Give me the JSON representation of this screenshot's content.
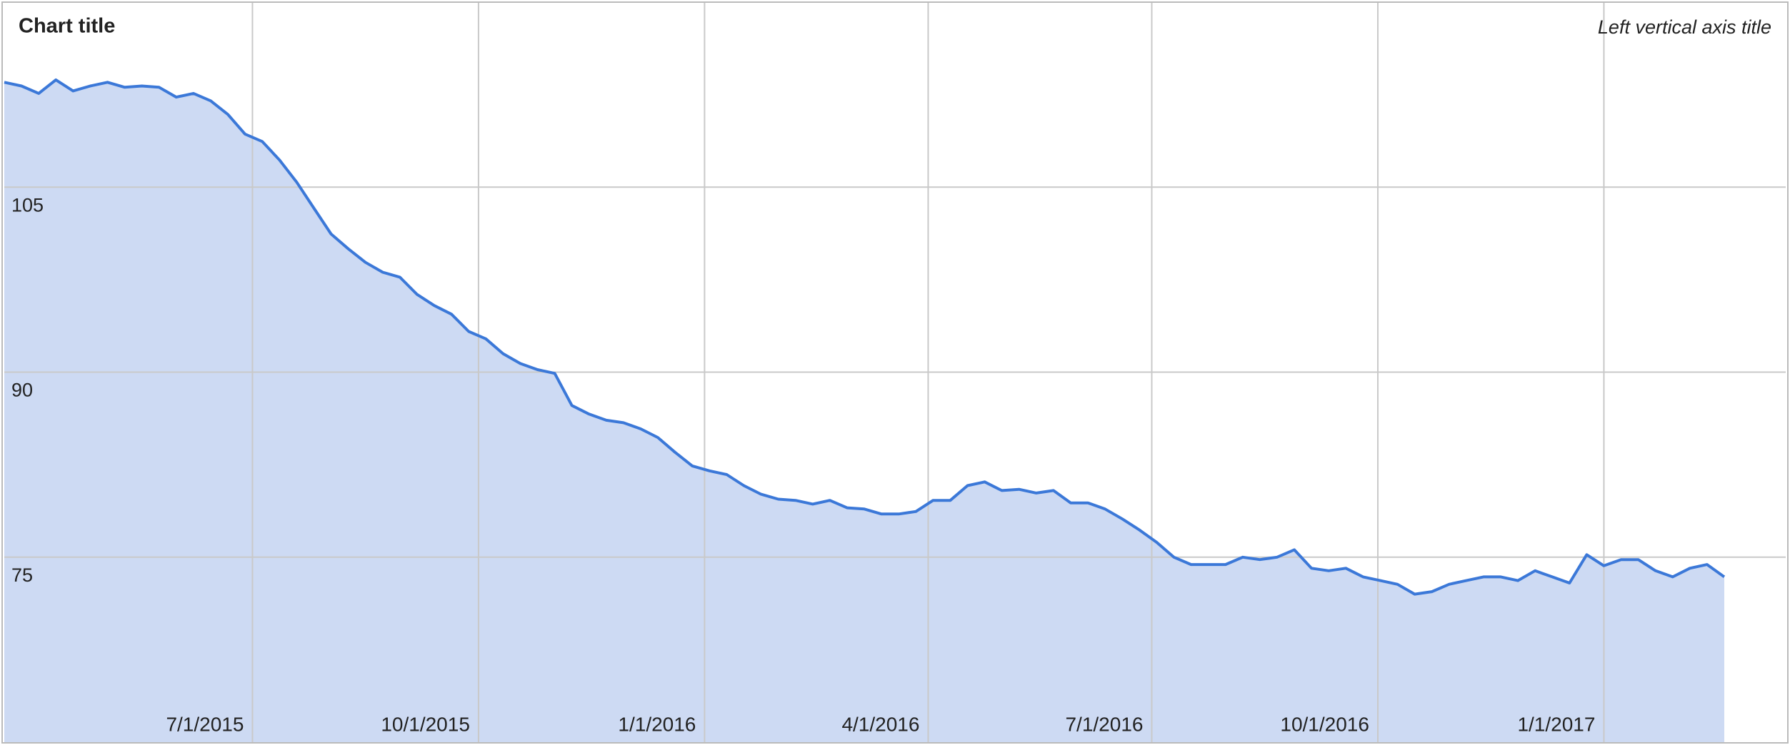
{
  "chart_data": {
    "type": "area",
    "title": "Chart title",
    "y_axis_title": "Left vertical axis title",
    "color": "#3b78d8",
    "fill_color": "#cddaf3",
    "grid": true,
    "x": [
      "3/22/2015",
      "3/29/2015",
      "4/5/2015",
      "4/12/2015",
      "4/19/2015",
      "4/26/2015",
      "5/3/2015",
      "5/10/2015",
      "5/17/2015",
      "5/24/2015",
      "5/31/2015",
      "6/7/2015",
      "6/14/2015",
      "6/21/2015",
      "6/28/2015",
      "7/5/2015",
      "7/12/2015",
      "7/19/2015",
      "7/26/2015",
      "8/2/2015",
      "8/9/2015",
      "8/16/2015",
      "8/23/2015",
      "8/30/2015",
      "9/6/2015",
      "9/13/2015",
      "9/20/2015",
      "9/27/2015",
      "10/4/2015",
      "10/11/2015",
      "10/18/2015",
      "10/25/2015",
      "11/1/2015",
      "11/8/2015",
      "11/15/2015",
      "11/22/2015",
      "11/29/2015",
      "12/6/2015",
      "12/13/2015",
      "12/20/2015",
      "12/27/2015",
      "1/3/2016",
      "1/10/2016",
      "1/17/2016",
      "1/24/2016",
      "1/31/2016",
      "2/7/2016",
      "2/14/2016",
      "2/21/2016",
      "2/28/2016",
      "3/6/2016",
      "3/13/2016",
      "3/20/2016",
      "3/27/2016",
      "4/3/2016",
      "4/10/2016",
      "4/17/2016",
      "4/24/2016",
      "5/1/2016",
      "5/8/2016",
      "5/15/2016",
      "5/22/2016",
      "5/29/2016",
      "6/5/2016",
      "6/12/2016",
      "6/19/2016",
      "6/26/2016",
      "7/3/2016",
      "7/10/2016",
      "7/17/2016",
      "7/24/2016",
      "7/31/2016",
      "8/7/2016",
      "8/14/2016",
      "8/21/2016",
      "8/28/2016",
      "9/4/2016",
      "9/11/2016",
      "9/18/2016",
      "9/25/2016",
      "10/2/2016",
      "10/9/2016",
      "10/16/2016",
      "10/23/2016",
      "10/30/2016",
      "11/6/2016",
      "11/13/2016",
      "11/20/2016",
      "11/27/2016",
      "12/4/2016",
      "12/11/2016",
      "12/18/2016",
      "12/25/2016",
      "1/1/2017",
      "1/8/2017",
      "1/15/2017",
      "1/22/2017",
      "1/29/2017",
      "2/5/2017",
      "2/12/2017",
      "2/19/2017"
    ],
    "values": [
      113.5,
      113.2,
      112.6,
      113.7,
      112.8,
      113.2,
      113.5,
      113.1,
      113.2,
      113.1,
      112.3,
      112.6,
      112.0,
      110.9,
      109.3,
      108.7,
      107.2,
      105.4,
      103.3,
      101.2,
      100.0,
      98.9,
      98.1,
      97.7,
      96.3,
      95.4,
      94.7,
      93.3,
      92.7,
      91.5,
      90.7,
      90.2,
      89.9,
      87.3,
      86.6,
      86.1,
      85.9,
      85.4,
      84.7,
      83.5,
      82.4,
      82.0,
      81.7,
      80.8,
      80.1,
      79.7,
      79.6,
      79.3,
      79.6,
      79.0,
      78.9,
      78.5,
      78.5,
      78.7,
      79.6,
      79.6,
      80.8,
      81.1,
      80.4,
      80.5,
      80.2,
      80.4,
      79.4,
      79.4,
      78.9,
      78.1,
      77.2,
      76.2,
      75.0,
      74.4,
      74.4,
      74.4,
      75.0,
      74.8,
      75.0,
      75.6,
      74.1,
      73.9,
      74.1,
      73.4,
      73.1,
      72.8,
      72.0,
      72.2,
      72.8,
      73.1,
      73.4,
      73.4,
      73.1,
      73.9,
      73.4,
      72.9,
      75.2,
      74.3,
      74.8,
      74.8,
      73.9,
      73.4,
      74.1,
      74.4,
      73.4
    ],
    "xlim": [
      "3/22/2015",
      "3/16/2017"
    ],
    "xticks": [
      "7/1/2015",
      "10/1/2015",
      "1/1/2016",
      "4/1/2016",
      "7/1/2016",
      "10/1/2016",
      "1/1/2017"
    ],
    "ylim": [
      60,
      120
    ],
    "yticks": [
      75,
      90,
      105
    ]
  }
}
